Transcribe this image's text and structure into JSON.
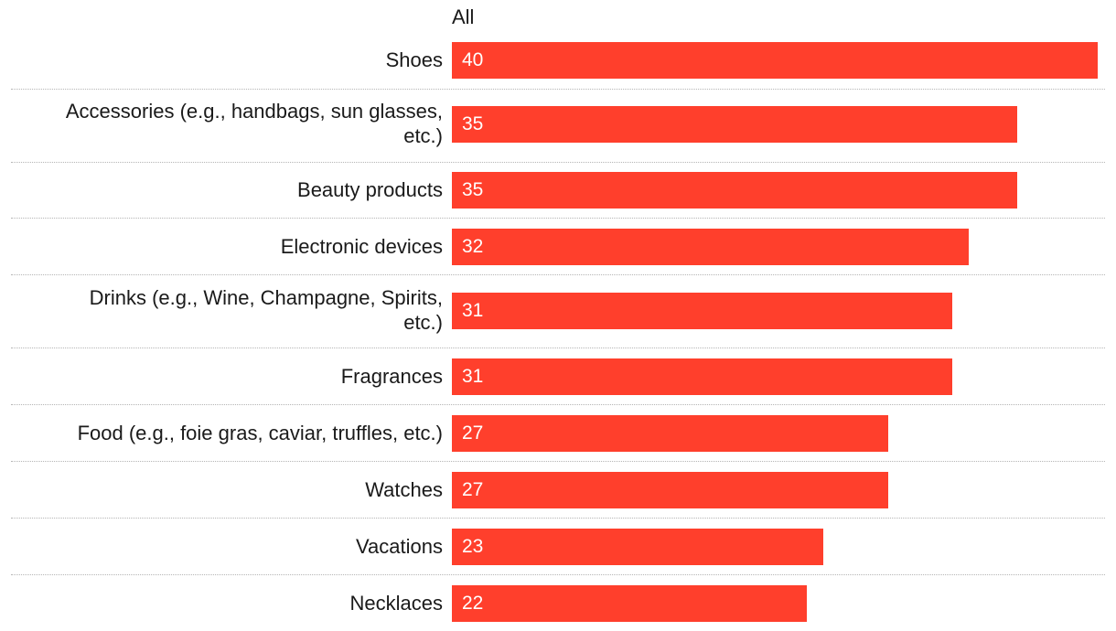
{
  "chart_data": {
    "type": "bar",
    "orientation": "horizontal",
    "series": [
      {
        "name": "All",
        "values": [
          40,
          35,
          35,
          32,
          31,
          31,
          27,
          27,
          23,
          22
        ]
      }
    ],
    "categories": [
      "Shoes",
      "Accessories (e.g., handbags, sun glasses, etc.)",
      "Beauty products",
      "Electronic devices",
      "Drinks (e.g., Wine, Champagne, Spirits, etc.)",
      "Fragrances",
      "Food (e.g., foie gras, caviar, truffles, etc.)",
      "Watches",
      "Vacations",
      "Necklaces"
    ],
    "category_lines": [
      [
        "Shoes"
      ],
      [
        "Accessories (e.g., handbags, sun glasses,",
        "etc.)"
      ],
      [
        "Beauty products"
      ],
      [
        "Electronic devices"
      ],
      [
        "Drinks (e.g., Wine, Champagne, Spirits,",
        "etc.)"
      ],
      [
        "Fragrances"
      ],
      [
        "Food (e.g., foie gras, caviar, truffles, etc.)"
      ],
      [
        "Watches"
      ],
      [
        "Vacations"
      ],
      [
        "Necklaces"
      ]
    ],
    "xlim": [
      0,
      40
    ],
    "data_labels": true,
    "grid": false,
    "bar_color": "#ff3f2c",
    "divider_color": "#b5b5b5"
  }
}
